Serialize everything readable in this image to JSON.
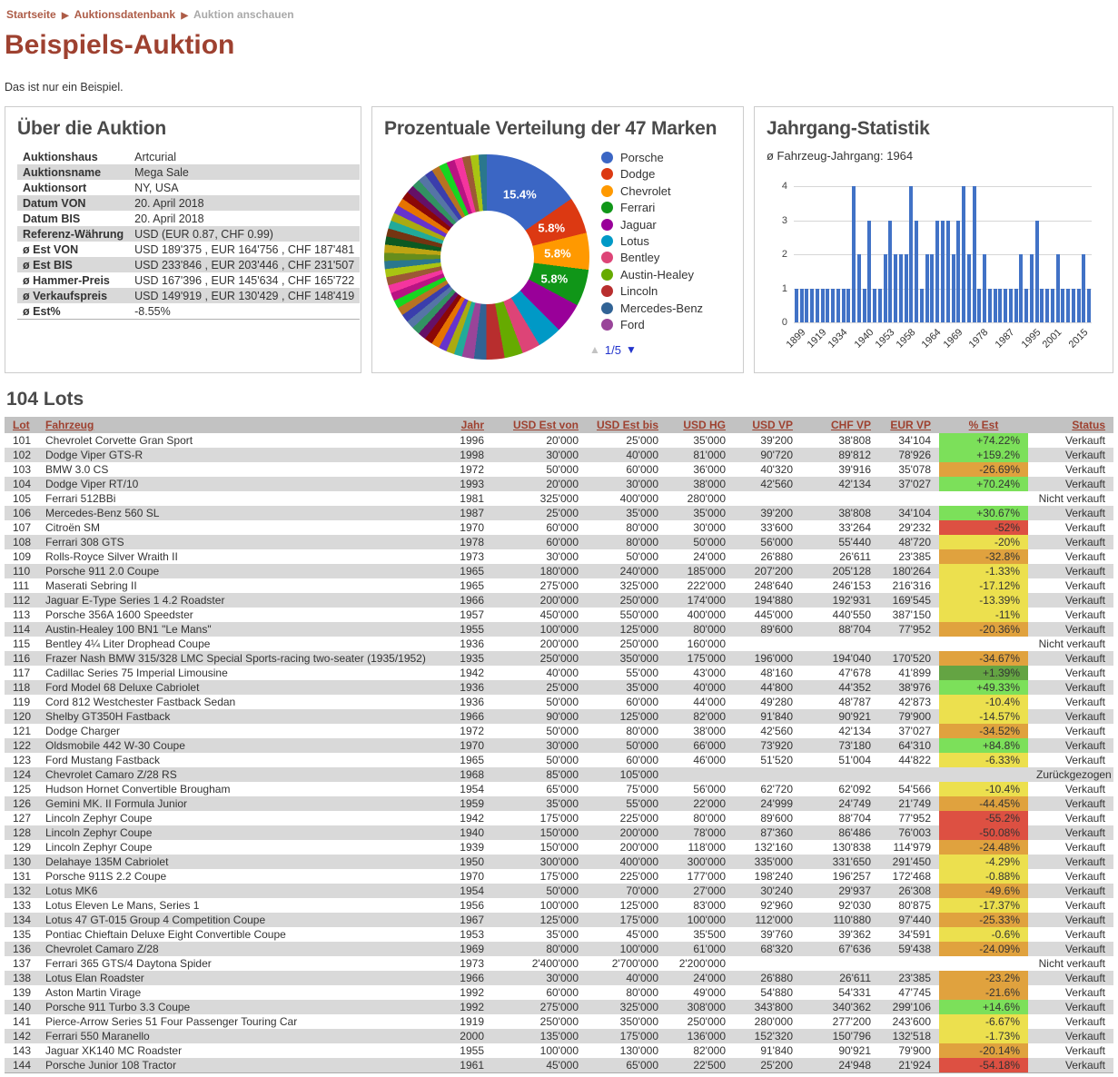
{
  "breadcrumb": {
    "separator": "▶",
    "items": [
      {
        "label": "Startseite"
      },
      {
        "label": "Auktionsdatenbank"
      },
      {
        "label": "Auktion anschauen"
      }
    ]
  },
  "page": {
    "title": "Beispiels-Auktion",
    "subtitle": "Das ist nur ein Beispiel."
  },
  "about": {
    "title": "Über die Auktion",
    "rows": [
      [
        "Auktionshaus",
        "Artcurial"
      ],
      [
        "Auktionsname",
        "Mega Sale"
      ],
      [
        "Auktionsort",
        "NY, USA"
      ],
      [
        "Datum VON",
        "20. April 2018"
      ],
      [
        "Datum BIS",
        "20. April 2018"
      ],
      [
        "Referenz-Währung",
        "USD (EUR 0.87, CHF 0.99)"
      ],
      [
        "ø Est VON",
        "USD 189'375 , EUR 164'756 , CHF 187'481"
      ],
      [
        "ø Est BIS",
        "USD 233'846 , EUR 203'446 , CHF 231'507"
      ],
      [
        "ø Hammer-Preis",
        "USD 167'396 , EUR 145'634 , CHF 165'722"
      ],
      [
        "ø Verkaufspreis",
        "USD 149'919 , EUR 130'429 , CHF 148'419"
      ],
      [
        "ø Est%",
        "-8.55%"
      ]
    ]
  },
  "pie": {
    "title": "Prozentuale Verteilung der 47 Marken",
    "type": "donut",
    "slices": [
      {
        "label": "Porsche",
        "value": 15.4,
        "color": "#3b66c4",
        "label_text": "15.4%"
      },
      {
        "label": "Dodge",
        "value": 5.8,
        "color": "#dc3912",
        "label_text": "5.8%"
      },
      {
        "label": "Chevrolet",
        "value": 5.8,
        "color": "#ff9900",
        "label_text": "5.8%"
      },
      {
        "label": "Ferrari",
        "value": 5.8,
        "color": "#109618",
        "label_text": "5.8%"
      },
      {
        "label": "Jaguar",
        "value": 4.8,
        "color": "#990099",
        "label_text": ""
      },
      {
        "label": "Lotus",
        "value": 3.8,
        "color": "#0099c6",
        "label_text": ""
      },
      {
        "label": "Bentley",
        "value": 2.9,
        "color": "#dd4477",
        "label_text": ""
      },
      {
        "label": "Austin-Healey",
        "value": 2.9,
        "color": "#66aa00",
        "label_text": ""
      },
      {
        "label": "Lincoln",
        "value": 2.9,
        "color": "#b82e2e",
        "label_text": ""
      },
      {
        "label": "Mercedes-Benz",
        "value": 1.9,
        "color": "#316395",
        "label_text": ""
      },
      {
        "label": "Ford",
        "value": 1.9,
        "color": "#994499",
        "label_text": ""
      }
    ],
    "others": {
      "count": 36,
      "value_each": 1.28,
      "palette": [
        "#22aa99",
        "#aaaa11",
        "#6633cc",
        "#e67300",
        "#8b0707",
        "#651067",
        "#329262",
        "#5574a6",
        "#3b3eac",
        "#b77322",
        "#16d620",
        "#b91383",
        "#f4359e",
        "#9c5935",
        "#a9c413",
        "#2a778d",
        "#668d1c",
        "#bea413",
        "#0c5922",
        "#743411"
      ]
    },
    "pager": {
      "up_icon": "▲",
      "count": "1/5",
      "down_icon": "▼"
    }
  },
  "bar": {
    "title": "Jahrgang-Statistik",
    "subtitle": "ø Fahrzeug-Jahrgang: 1964",
    "type": "bar",
    "color": "#4172c6",
    "ymax": 4,
    "yticks": [
      0,
      1,
      2,
      3,
      4
    ],
    "values": [
      1,
      1,
      1,
      1,
      1,
      1,
      1,
      1,
      1,
      1,
      1,
      4,
      2,
      1,
      3,
      1,
      1,
      2,
      3,
      2,
      2,
      2,
      4,
      3,
      1,
      2,
      2,
      3,
      3,
      3,
      2,
      3,
      4,
      2,
      4,
      1,
      2,
      1,
      1,
      1,
      1,
      1,
      1,
      2,
      1,
      2,
      3,
      1,
      1,
      1,
      2,
      1,
      1,
      1,
      1,
      2,
      1
    ],
    "xticks": [
      {
        "i": 0,
        "label": "1899"
      },
      {
        "i": 4,
        "label": "1919"
      },
      {
        "i": 8,
        "label": "1934"
      },
      {
        "i": 13,
        "label": "1940"
      },
      {
        "i": 17,
        "label": "1953"
      },
      {
        "i": 21,
        "label": "1958"
      },
      {
        "i": 26,
        "label": "1964"
      },
      {
        "i": 30,
        "label": "1969"
      },
      {
        "i": 35,
        "label": "1978"
      },
      {
        "i": 40,
        "label": "1987"
      },
      {
        "i": 45,
        "label": "1995"
      },
      {
        "i": 49,
        "label": "2001"
      },
      {
        "i": 54,
        "label": "2015"
      }
    ]
  },
  "lots": {
    "heading": "104 Lots",
    "badge_colors": {
      "green": "#7ce05a",
      "dkgreen": "#64a443",
      "yellow": "#ece04e",
      "orange": "#e0a23e",
      "red": "#dd5042"
    },
    "columns": [
      {
        "label": "Lot",
        "align": "al"
      },
      {
        "label": "Fahrzeug",
        "align": "al"
      },
      {
        "label": "Jahr",
        "align": "ar"
      },
      {
        "label": "USD Est von",
        "align": "ar"
      },
      {
        "label": "USD Est bis",
        "align": "ar"
      },
      {
        "label": "USD HG",
        "align": "ar"
      },
      {
        "label": "USD VP",
        "align": "ar"
      },
      {
        "label": "CHF VP",
        "align": "ar"
      },
      {
        "label": "EUR VP",
        "align": "ar"
      },
      {
        "label": "% Est",
        "align": "ac"
      },
      {
        "label": "Status",
        "align": "ar"
      }
    ],
    "rows": [
      [
        "101",
        "Chevrolet Corvette Gran Sport",
        "1996",
        "20'000",
        "25'000",
        "35'000",
        "39'200",
        "38'808",
        "34'104",
        "+74.22%",
        "green",
        "Verkauft"
      ],
      [
        "102",
        "Dodge Viper GTS-R",
        "1998",
        "30'000",
        "40'000",
        "81'000",
        "90'720",
        "89'812",
        "78'926",
        "+159.2%",
        "green",
        "Verkauft"
      ],
      [
        "103",
        "BMW 3.0 CS",
        "1972",
        "50'000",
        "60'000",
        "36'000",
        "40'320",
        "39'916",
        "35'078",
        "-26.69%",
        "orange",
        "Verkauft"
      ],
      [
        "104",
        "Dodge Viper RT/10",
        "1993",
        "20'000",
        "30'000",
        "38'000",
        "42'560",
        "42'134",
        "37'027",
        "+70.24%",
        "green",
        "Verkauft"
      ],
      [
        "105",
        "Ferrari 512BBi",
        "1981",
        "325'000",
        "400'000",
        "280'000",
        "",
        "",
        "",
        "",
        "",
        "Nicht verkauft"
      ],
      [
        "106",
        "Mercedes-Benz 560 SL",
        "1987",
        "25'000",
        "35'000",
        "35'000",
        "39'200",
        "38'808",
        "34'104",
        "+30.67%",
        "green",
        "Verkauft"
      ],
      [
        "107",
        "Citroën SM",
        "1970",
        "60'000",
        "80'000",
        "30'000",
        "33'600",
        "33'264",
        "29'232",
        "-52%",
        "red",
        "Verkauft"
      ],
      [
        "108",
        "Ferrari 308 GTS",
        "1978",
        "60'000",
        "80'000",
        "50'000",
        "56'000",
        "55'440",
        "48'720",
        "-20%",
        "yellow",
        "Verkauft"
      ],
      [
        "109",
        "Rolls-Royce Silver Wraith II",
        "1973",
        "30'000",
        "50'000",
        "24'000",
        "26'880",
        "26'611",
        "23'385",
        "-32.8%",
        "orange",
        "Verkauft"
      ],
      [
        "110",
        "Porsche 911 2.0 Coupe",
        "1965",
        "180'000",
        "240'000",
        "185'000",
        "207'200",
        "205'128",
        "180'264",
        "-1.33%",
        "yellow",
        "Verkauft"
      ],
      [
        "111",
        "Maserati Sebring II",
        "1965",
        "275'000",
        "325'000",
        "222'000",
        "248'640",
        "246'153",
        "216'316",
        "-17.12%",
        "yellow",
        "Verkauft"
      ],
      [
        "112",
        "Jaguar E-Type Series 1 4.2 Roadster",
        "1966",
        "200'000",
        "250'000",
        "174'000",
        "194'880",
        "192'931",
        "169'545",
        "-13.39%",
        "yellow",
        "Verkauft"
      ],
      [
        "113",
        "Porsche 356A 1600 Speedster",
        "1957",
        "450'000",
        "550'000",
        "400'000",
        "445'000",
        "440'550",
        "387'150",
        "-11%",
        "yellow",
        "Verkauft"
      ],
      [
        "114",
        "Austin-Healey 100 BN1 \"Le Mans\"",
        "1955",
        "100'000",
        "125'000",
        "80'000",
        "89'600",
        "88'704",
        "77'952",
        "-20.36%",
        "orange",
        "Verkauft"
      ],
      [
        "115",
        "Bentley 4¼ Liter Drophead Coupe",
        "1936",
        "200'000",
        "250'000",
        "160'000",
        "",
        "",
        "",
        "",
        "",
        "Nicht verkauft"
      ],
      [
        "116",
        "Frazer Nash BMW 315/328 LMC Special Sports-racing two-seater (1935/1952)",
        "1935",
        "250'000",
        "350'000",
        "175'000",
        "196'000",
        "194'040",
        "170'520",
        "-34.67%",
        "orange",
        "Verkauft"
      ],
      [
        "117",
        "Cadillac Series 75 Imperial Limousine",
        "1942",
        "40'000",
        "55'000",
        "43'000",
        "48'160",
        "47'678",
        "41'899",
        "+1.39%",
        "dkgreen",
        "Verkauft"
      ],
      [
        "118",
        "Ford Model 68 Deluxe Cabriolet",
        "1936",
        "25'000",
        "35'000",
        "40'000",
        "44'800",
        "44'352",
        "38'976",
        "+49.33%",
        "green",
        "Verkauft"
      ],
      [
        "119",
        "Cord 812 Westchester Fastback Sedan",
        "1936",
        "50'000",
        "60'000",
        "44'000",
        "49'280",
        "48'787",
        "42'873",
        "-10.4%",
        "yellow",
        "Verkauft"
      ],
      [
        "120",
        "Shelby GT350H Fastback",
        "1966",
        "90'000",
        "125'000",
        "82'000",
        "91'840",
        "90'921",
        "79'900",
        "-14.57%",
        "yellow",
        "Verkauft"
      ],
      [
        "121",
        "Dodge Charger",
        "1972",
        "50'000",
        "80'000",
        "38'000",
        "42'560",
        "42'134",
        "37'027",
        "-34.52%",
        "orange",
        "Verkauft"
      ],
      [
        "122",
        "Oldsmobile 442 W-30 Coupe",
        "1970",
        "30'000",
        "50'000",
        "66'000",
        "73'920",
        "73'180",
        "64'310",
        "+84.8%",
        "green",
        "Verkauft"
      ],
      [
        "123",
        "Ford Mustang Fastback",
        "1965",
        "50'000",
        "60'000",
        "46'000",
        "51'520",
        "51'004",
        "44'822",
        "-6.33%",
        "yellow",
        "Verkauft"
      ],
      [
        "124",
        "Chevrolet Camaro Z/28 RS",
        "1968",
        "85'000",
        "105'000",
        "",
        "",
        "",
        "",
        "",
        "",
        "Zurückgezogen"
      ],
      [
        "125",
        "Hudson Hornet Convertible Brougham",
        "1954",
        "65'000",
        "75'000",
        "56'000",
        "62'720",
        "62'092",
        "54'566",
        "-10.4%",
        "yellow",
        "Verkauft"
      ],
      [
        "126",
        "Gemini MK. II Formula Junior",
        "1959",
        "35'000",
        "55'000",
        "22'000",
        "24'999",
        "24'749",
        "21'749",
        "-44.45%",
        "orange",
        "Verkauft"
      ],
      [
        "127",
        "Lincoln Zephyr Coupe",
        "1942",
        "175'000",
        "225'000",
        "80'000",
        "89'600",
        "88'704",
        "77'952",
        "-55.2%",
        "red",
        "Verkauft"
      ],
      [
        "128",
        "Lincoln Zephyr Coupe",
        "1940",
        "150'000",
        "200'000",
        "78'000",
        "87'360",
        "86'486",
        "76'003",
        "-50.08%",
        "red",
        "Verkauft"
      ],
      [
        "129",
        "Lincoln Zephyr Coupe",
        "1939",
        "150'000",
        "200'000",
        "118'000",
        "132'160",
        "130'838",
        "114'979",
        "-24.48%",
        "orange",
        "Verkauft"
      ],
      [
        "130",
        "Delahaye 135M Cabriolet",
        "1950",
        "300'000",
        "400'000",
        "300'000",
        "335'000",
        "331'650",
        "291'450",
        "-4.29%",
        "yellow",
        "Verkauft"
      ],
      [
        "131",
        "Porsche 911S 2.2 Coupe",
        "1970",
        "175'000",
        "225'000",
        "177'000",
        "198'240",
        "196'257",
        "172'468",
        "-0.88%",
        "yellow",
        "Verkauft"
      ],
      [
        "132",
        "Lotus MK6",
        "1954",
        "50'000",
        "70'000",
        "27'000",
        "30'240",
        "29'937",
        "26'308",
        "-49.6%",
        "orange",
        "Verkauft"
      ],
      [
        "133",
        "Lotus Eleven Le Mans, Series 1",
        "1956",
        "100'000",
        "125'000",
        "83'000",
        "92'960",
        "92'030",
        "80'875",
        "-17.37%",
        "yellow",
        "Verkauft"
      ],
      [
        "134",
        "Lotus 47 GT-015 Group 4 Competition Coupe",
        "1967",
        "125'000",
        "175'000",
        "100'000",
        "112'000",
        "110'880",
        "97'440",
        "-25.33%",
        "orange",
        "Verkauft"
      ],
      [
        "135",
        "Pontiac Chieftain Deluxe Eight Convertible Coupe",
        "1953",
        "35'000",
        "45'000",
        "35'500",
        "39'760",
        "39'362",
        "34'591",
        "-0.6%",
        "yellow",
        "Verkauft"
      ],
      [
        "136",
        "Chevrolet Camaro Z/28",
        "1969",
        "80'000",
        "100'000",
        "61'000",
        "68'320",
        "67'636",
        "59'438",
        "-24.09%",
        "orange",
        "Verkauft"
      ],
      [
        "137",
        "Ferrari 365 GTS/4 Daytona Spider",
        "1973",
        "2'400'000",
        "2'700'000",
        "2'200'000",
        "",
        "",
        "",
        "",
        "",
        "Nicht verkauft"
      ],
      [
        "138",
        "Lotus Elan Roadster",
        "1966",
        "30'000",
        "40'000",
        "24'000",
        "26'880",
        "26'611",
        "23'385",
        "-23.2%",
        "orange",
        "Verkauft"
      ],
      [
        "139",
        "Aston Martin Virage",
        "1992",
        "60'000",
        "80'000",
        "49'000",
        "54'880",
        "54'331",
        "47'745",
        "-21.6%",
        "orange",
        "Verkauft"
      ],
      [
        "140",
        "Porsche 911 Turbo 3.3 Coupe",
        "1992",
        "275'000",
        "325'000",
        "308'000",
        "343'800",
        "340'362",
        "299'106",
        "+14.6%",
        "green",
        "Verkauft"
      ],
      [
        "141",
        "Pierce-Arrow Series 51 Four Passenger Touring Car",
        "1919",
        "250'000",
        "350'000",
        "250'000",
        "280'000",
        "277'200",
        "243'600",
        "-6.67%",
        "yellow",
        "Verkauft"
      ],
      [
        "142",
        "Ferrari 550 Maranello",
        "2000",
        "135'000",
        "175'000",
        "136'000",
        "152'320",
        "150'796",
        "132'518",
        "-1.73%",
        "yellow",
        "Verkauft"
      ],
      [
        "143",
        "Jaguar XK140 MC Roadster",
        "1955",
        "100'000",
        "130'000",
        "82'000",
        "91'840",
        "90'921",
        "79'900",
        "-20.14%",
        "orange",
        "Verkauft"
      ],
      [
        "144",
        "Porsche Junior 108 Tractor",
        "1961",
        "45'000",
        "65'000",
        "22'500",
        "25'200",
        "24'948",
        "21'924",
        "-54.18%",
        "red",
        "Verkauft"
      ]
    ]
  }
}
